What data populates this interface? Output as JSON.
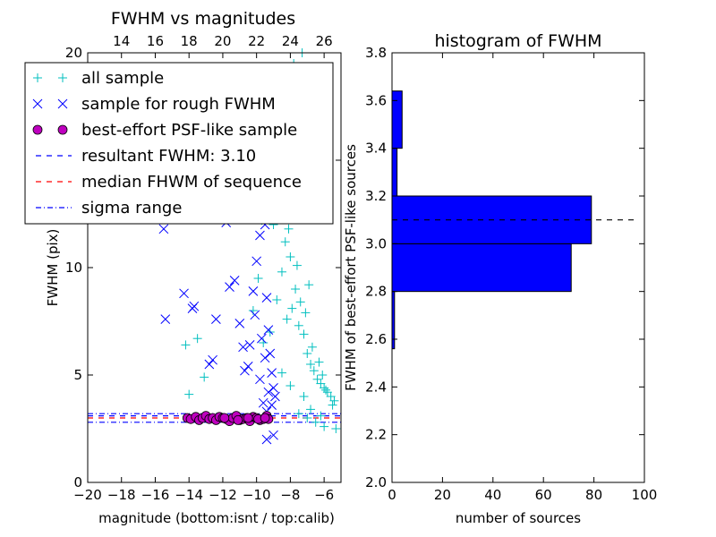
{
  "chart_data": [
    {
      "type": "scatter",
      "title": "FWHM vs magnitudes",
      "xlabel": "magnitude (bottom:isnt / top:calib)",
      "ylabel": "FWHM (pix)",
      "xlim": [
        -20,
        -5
      ],
      "ylim": [
        0,
        20
      ],
      "x_ticks": [
        "−20",
        "−18",
        "−16",
        "−14",
        "−12",
        "−10",
        "−8",
        "−6"
      ],
      "x_tick_values": [
        -20,
        -18,
        -16,
        -14,
        -12,
        -10,
        -8,
        -6
      ],
      "y_ticks": [
        "0",
        "5",
        "10",
        "15",
        "20"
      ],
      "y_tick_values": [
        0,
        5,
        10,
        15,
        20
      ],
      "top_ticks": [
        "14",
        "16",
        "18",
        "20",
        "22",
        "24",
        "26"
      ],
      "top_tick_values": [
        14,
        16,
        18,
        20,
        22,
        24,
        26
      ],
      "top_offset": 32,
      "grid": false,
      "legend_position": "top-left",
      "series": [
        {
          "name": "all sample",
          "marker": "+",
          "color": "#00bfbf",
          "x": [
            -14.2,
            -14.0,
            -13.5,
            -13.1,
            -10.2,
            -9.9,
            -9.7,
            -9.6,
            -9.2,
            -9.0,
            -8.8,
            -8.7,
            -8.5,
            -8.3,
            -8.2,
            -8.0,
            -7.9,
            -7.7,
            -7.5,
            -7.4,
            -7.2,
            -7.0,
            -6.8,
            -6.6,
            -6.4,
            -6.2,
            -6.0,
            -5.8,
            -5.6,
            -5.4,
            -8.6,
            -8.1,
            -7.6,
            -7.1,
            -6.7,
            -6.1,
            -5.5,
            -9.3,
            -8.9,
            -8.4,
            -7.8,
            -7.3,
            -6.9,
            -6.3,
            -5.9,
            -7.5,
            -7.0,
            -6.5,
            -6.0,
            -5.3,
            -8.5,
            -8.0,
            -7.2,
            -6.8,
            -6.2
          ],
          "y": [
            6.4,
            4.1,
            6.7,
            4.9,
            8.0,
            9.5,
            12.2,
            6.5,
            7.0,
            12.0,
            8.5,
            15.1,
            9.8,
            11.2,
            7.6,
            10.5,
            8.1,
            9.0,
            7.3,
            8.4,
            6.9,
            6.0,
            5.5,
            5.2,
            4.8,
            4.6,
            4.4,
            4.2,
            4.0,
            3.8,
            13.5,
            11.8,
            10.1,
            7.9,
            6.3,
            5.0,
            3.6,
            16.5,
            18.2,
            14.0,
            19.5,
            20.0,
            9.2,
            5.6,
            4.3,
            3.2,
            3.0,
            2.8,
            2.6,
            2.5,
            5.1,
            4.5,
            4.0,
            3.4,
            3.1
          ]
        },
        {
          "name": "sample for rough FWHM",
          "marker": "x",
          "color": "#0000ff",
          "x": [
            -15.5,
            -15.4,
            -14.3,
            -13.8,
            -13.7,
            -12.8,
            -12.6,
            -12.4,
            -11.8,
            -11.6,
            -11.3,
            -11.0,
            -10.8,
            -10.7,
            -10.5,
            -10.4,
            -10.2,
            -10.0,
            -9.9,
            -9.8,
            -9.6,
            -9.5,
            -9.4,
            -9.3,
            -9.2,
            -9.1,
            -9.0,
            -8.9,
            -9.6,
            -9.4,
            -9.8,
            -10.1,
            -9.7,
            -9.5,
            -9.3,
            -9.1,
            -9.0,
            -9.4
          ],
          "y": [
            11.8,
            7.6,
            8.8,
            8.1,
            8.2,
            5.5,
            5.7,
            7.6,
            12.1,
            9.1,
            9.4,
            7.4,
            6.3,
            5.2,
            5.4,
            6.4,
            8.9,
            10.3,
            12.5,
            11.5,
            13.2,
            12.0,
            8.6,
            7.1,
            6.0,
            5.1,
            4.4,
            4.0,
            3.7,
            3.3,
            4.8,
            7.8,
            6.7,
            5.8,
            4.2,
            3.6,
            2.2,
            2.0
          ]
        },
        {
          "name": "best-effort PSF-like sample",
          "marker": "o",
          "color": "#bf00bf",
          "x": [
            -14.1,
            -13.9,
            -13.6,
            -13.4,
            -13.2,
            -13.0,
            -12.8,
            -12.6,
            -12.4,
            -12.2,
            -12.0,
            -11.8,
            -11.6,
            -11.4,
            -11.2,
            -11.0,
            -10.8,
            -10.6,
            -10.4,
            -10.2,
            -10.0,
            -9.8,
            -9.6,
            -9.4,
            -9.3,
            -11.9,
            -11.1,
            -10.5,
            -9.9,
            -9.5
          ],
          "y": [
            3.0,
            2.95,
            3.05,
            2.9,
            3.0,
            3.1,
            2.95,
            3.0,
            2.9,
            3.05,
            3.0,
            2.95,
            2.85,
            3.0,
            3.1,
            2.9,
            2.95,
            3.0,
            2.85,
            3.05,
            3.0,
            2.9,
            2.95,
            3.1,
            2.95,
            3.0,
            2.9,
            3.0,
            2.95,
            3.0
          ]
        }
      ],
      "lines": [
        {
          "name": "resultant FWHM: 3.10",
          "style": "dashed",
          "color": "#0000ff",
          "y": 3.1
        },
        {
          "name": "median FHWM of sequence",
          "style": "dashed",
          "color": "#ff0000",
          "y": 3.0
        },
        {
          "name": "sigma range",
          "style": "dashdot",
          "color": "#0000ff",
          "y": [
            2.8,
            3.2
          ]
        }
      ],
      "legend": [
        {
          "label": "all sample",
          "marker": "+",
          "color": "#00bfbf"
        },
        {
          "label": "sample for rough FWHM",
          "marker": "x",
          "color": "#0000ff"
        },
        {
          "label": "best-effort PSF-like sample",
          "marker": "o",
          "color": "#bf00bf"
        },
        {
          "label": "resultant FWHM: 3.10",
          "marker": "dashed",
          "color": "#0000ff"
        },
        {
          "label": "median FHWM of sequence",
          "marker": "dashed",
          "color": "#ff0000"
        },
        {
          "label": "sigma range",
          "marker": "dashdot",
          "color": "#0000ff"
        }
      ]
    },
    {
      "type": "bar",
      "orientation": "horizontal",
      "title": "histogram of FWHM",
      "xlabel": "number of sources",
      "ylabel": "FWHM of best-effort PSF-like sources",
      "xlim": [
        0,
        100
      ],
      "ylim": [
        2.0,
        3.8
      ],
      "x_ticks": [
        "0",
        "20",
        "40",
        "60",
        "80",
        "100"
      ],
      "x_tick_values": [
        0,
        20,
        40,
        60,
        80,
        100
      ],
      "y_ticks": [
        "2.0",
        "2.2",
        "2.4",
        "2.6",
        "2.8",
        "3.0",
        "3.2",
        "3.4",
        "3.6",
        "3.8"
      ],
      "y_tick_values": [
        2.0,
        2.2,
        2.4,
        2.6,
        2.8,
        3.0,
        3.2,
        3.4,
        3.6,
        3.8
      ],
      "bar_color": "#0000ff",
      "bins": [
        2.56,
        2.6,
        2.8,
        3.0,
        3.2,
        3.4,
        3.64
      ],
      "counts": [
        1,
        1,
        71,
        79,
        2,
        4
      ],
      "reference_line": {
        "y": 3.1,
        "style": "dashed",
        "color": "#000000",
        "x_range": [
          0,
          96
        ]
      }
    }
  ]
}
